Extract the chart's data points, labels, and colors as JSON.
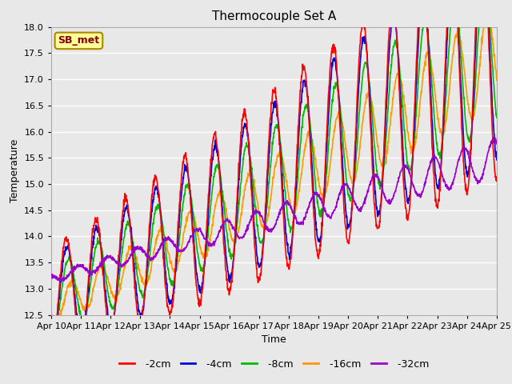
{
  "title": "Thermocouple Set A",
  "xlabel": "Time",
  "ylabel": "Temperature",
  "ylim": [
    12.5,
    18.0
  ],
  "series": {
    "-2cm": {
      "color": "#ff0000",
      "lw": 1.2
    },
    "-4cm": {
      "color": "#0000dd",
      "lw": 1.2
    },
    "-8cm": {
      "color": "#00bb00",
      "lw": 1.2
    },
    "-16cm": {
      "color": "#ff9900",
      "lw": 1.2
    },
    "-32cm": {
      "color": "#9900cc",
      "lw": 1.2
    }
  },
  "legend_label": "SB_met",
  "legend_bg": "#ffff99",
  "legend_edge": "#aa8800",
  "legend_text_color": "#880000",
  "x_ticks": [
    "Apr 10",
    "Apr 11",
    "Apr 12",
    "Apr 13",
    "Apr 14",
    "Apr 15",
    "Apr 16",
    "Apr 17",
    "Apr 18",
    "Apr 19",
    "Apr 20",
    "Apr 21",
    "Apr 22",
    "Apr 23",
    "Apr 24",
    "Apr 25"
  ],
  "bg_color": "#e8e8e8",
  "grid_color": "#ffffff",
  "n_points": 1500
}
